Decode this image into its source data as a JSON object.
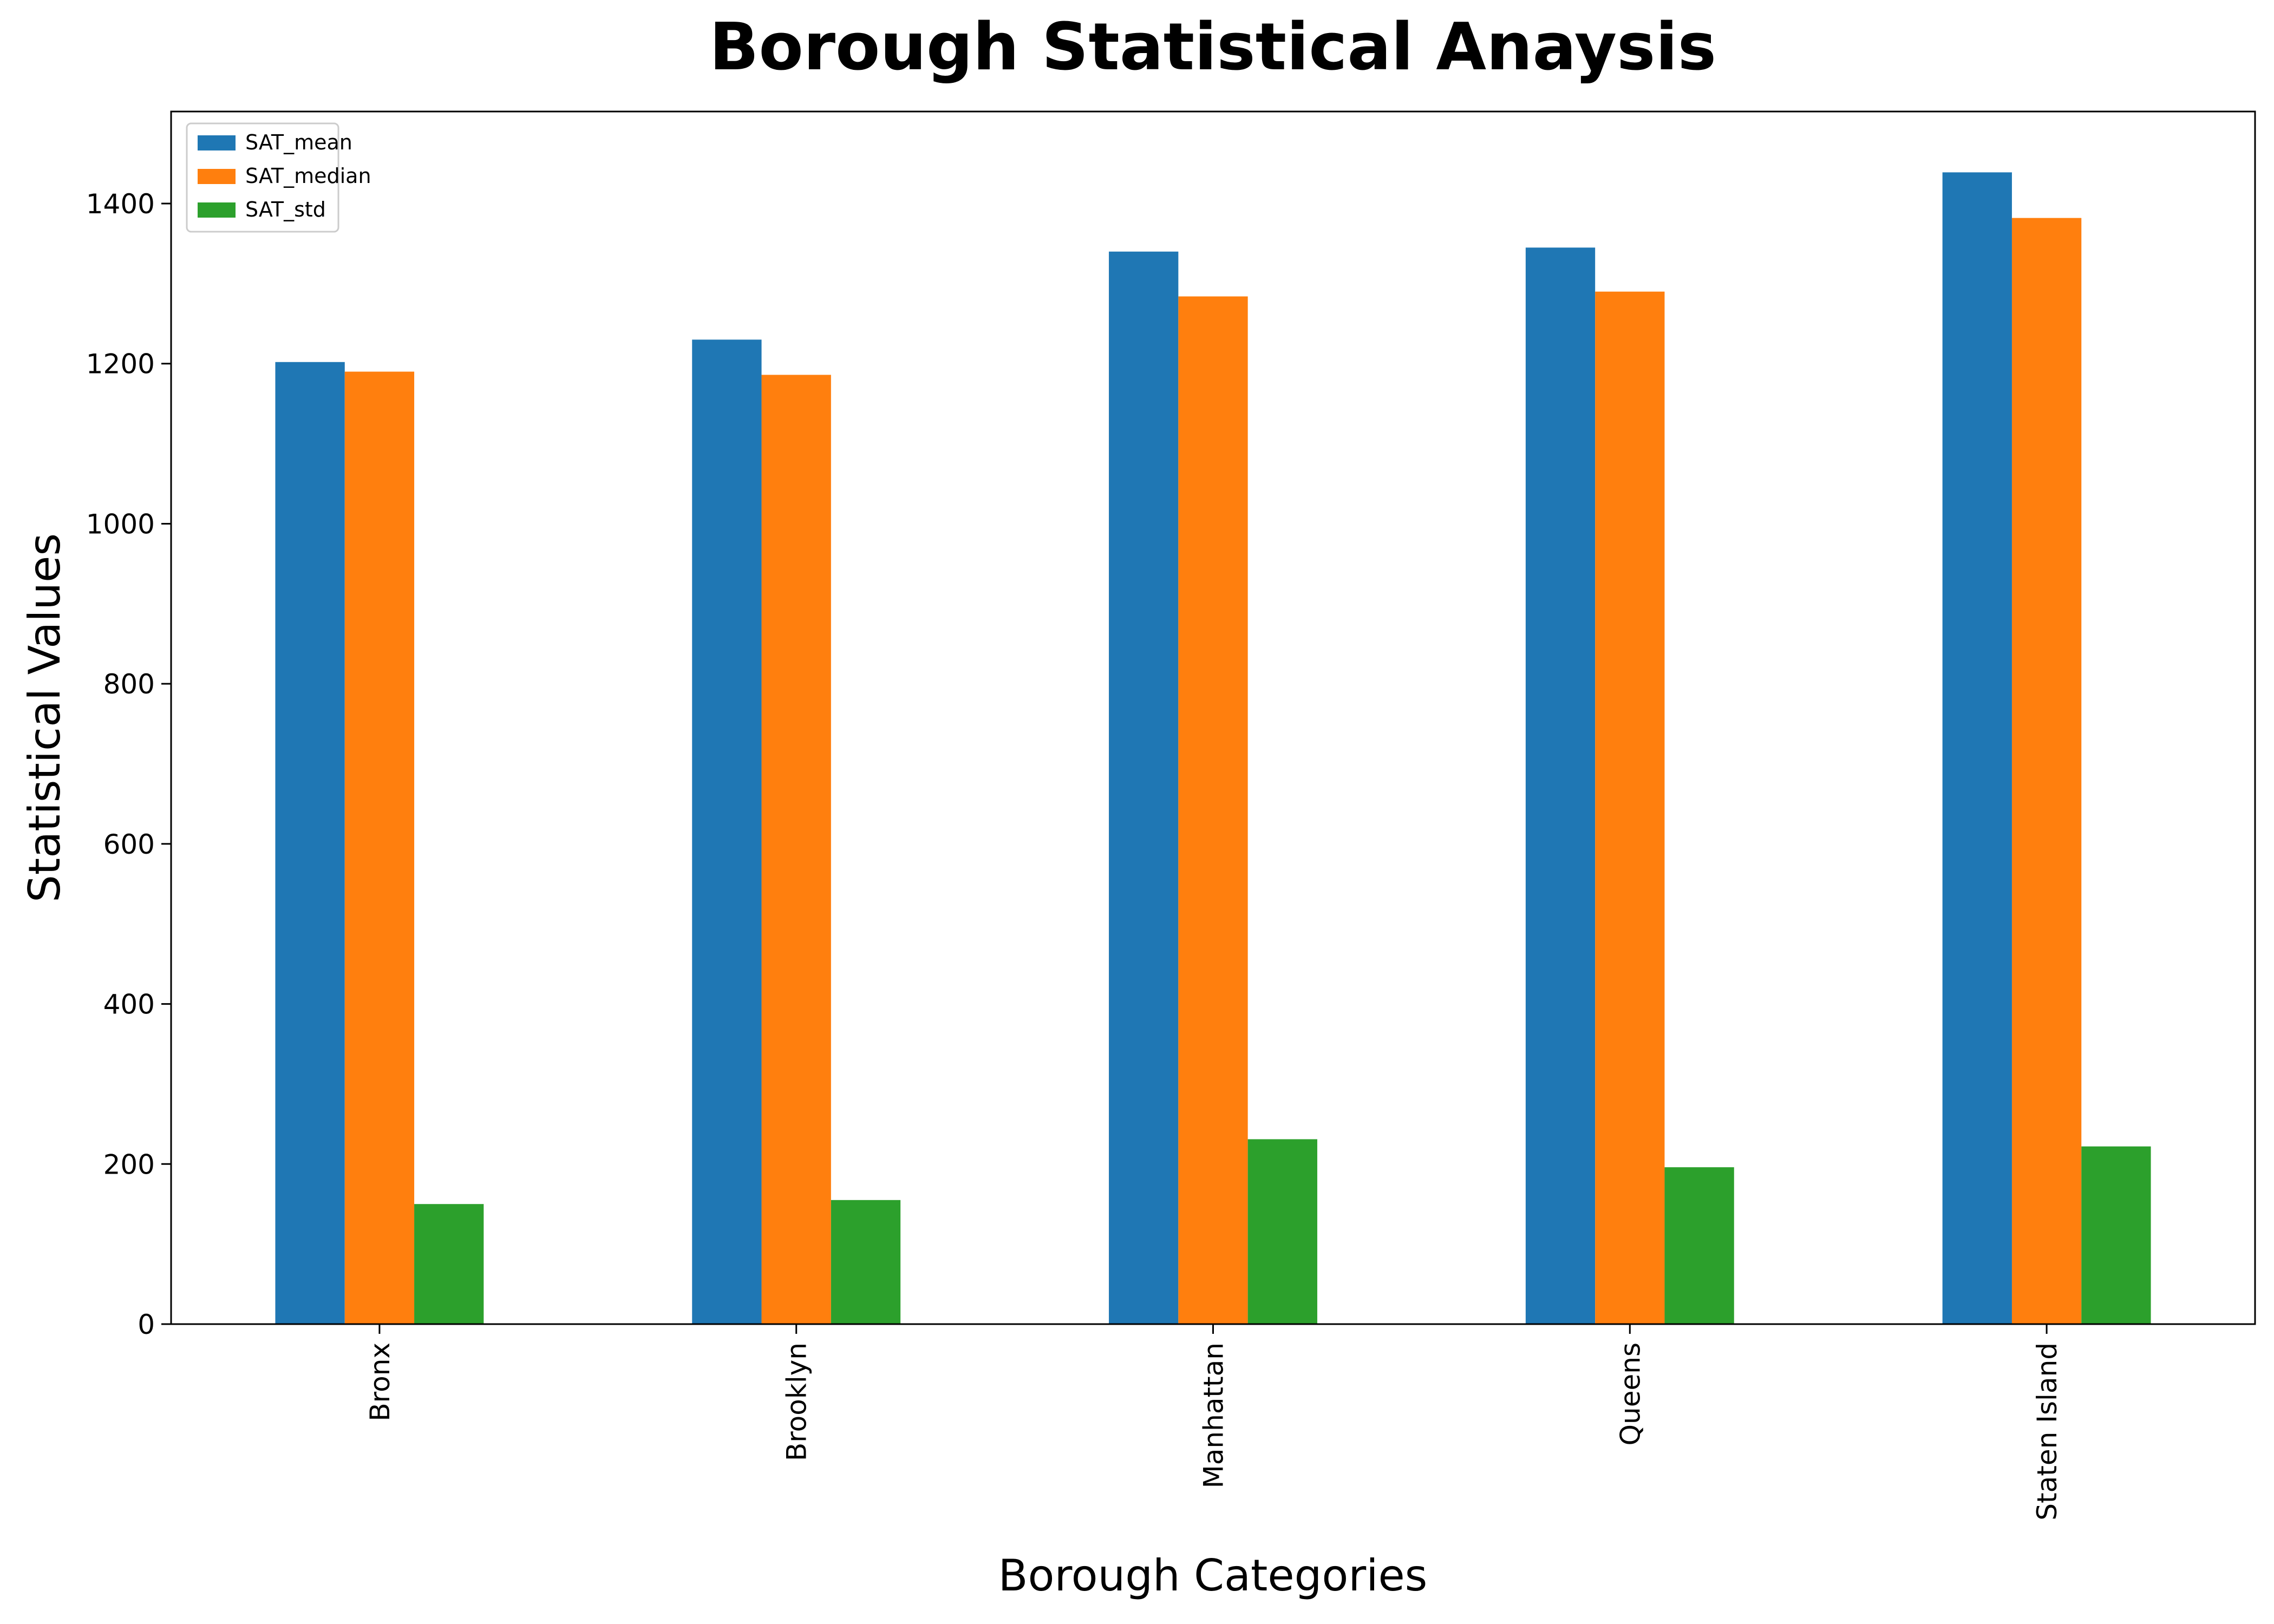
{
  "chart_data": {
    "type": "bar",
    "title": "Borough Statistical Anaysis",
    "xlabel": "Borough Categories",
    "ylabel": "Statistical Values",
    "categories": [
      "Bronx",
      "Brooklyn",
      "Manhattan",
      "Queens",
      "Staten Island"
    ],
    "series": [
      {
        "name": "SAT_mean",
        "color": "#1f77b4",
        "values": [
          1202,
          1230,
          1340,
          1345,
          1439
        ]
      },
      {
        "name": "SAT_median",
        "color": "#ff7f0e",
        "values": [
          1190,
          1186,
          1284,
          1290,
          1382
        ]
      },
      {
        "name": "SAT_std",
        "color": "#2ca02c",
        "values": [
          150,
          155,
          231,
          196,
          222
        ]
      }
    ],
    "ylim": [
      0,
      1515
    ],
    "yticks": [
      0,
      200,
      400,
      600,
      800,
      1000,
      1200,
      1400
    ],
    "ytick_labels": [
      "0",
      "200",
      "400",
      "600",
      "800",
      "1000",
      "1200",
      "1400"
    ],
    "xtick_rotation": 90,
    "grid": false,
    "legend_position": "top-left"
  }
}
